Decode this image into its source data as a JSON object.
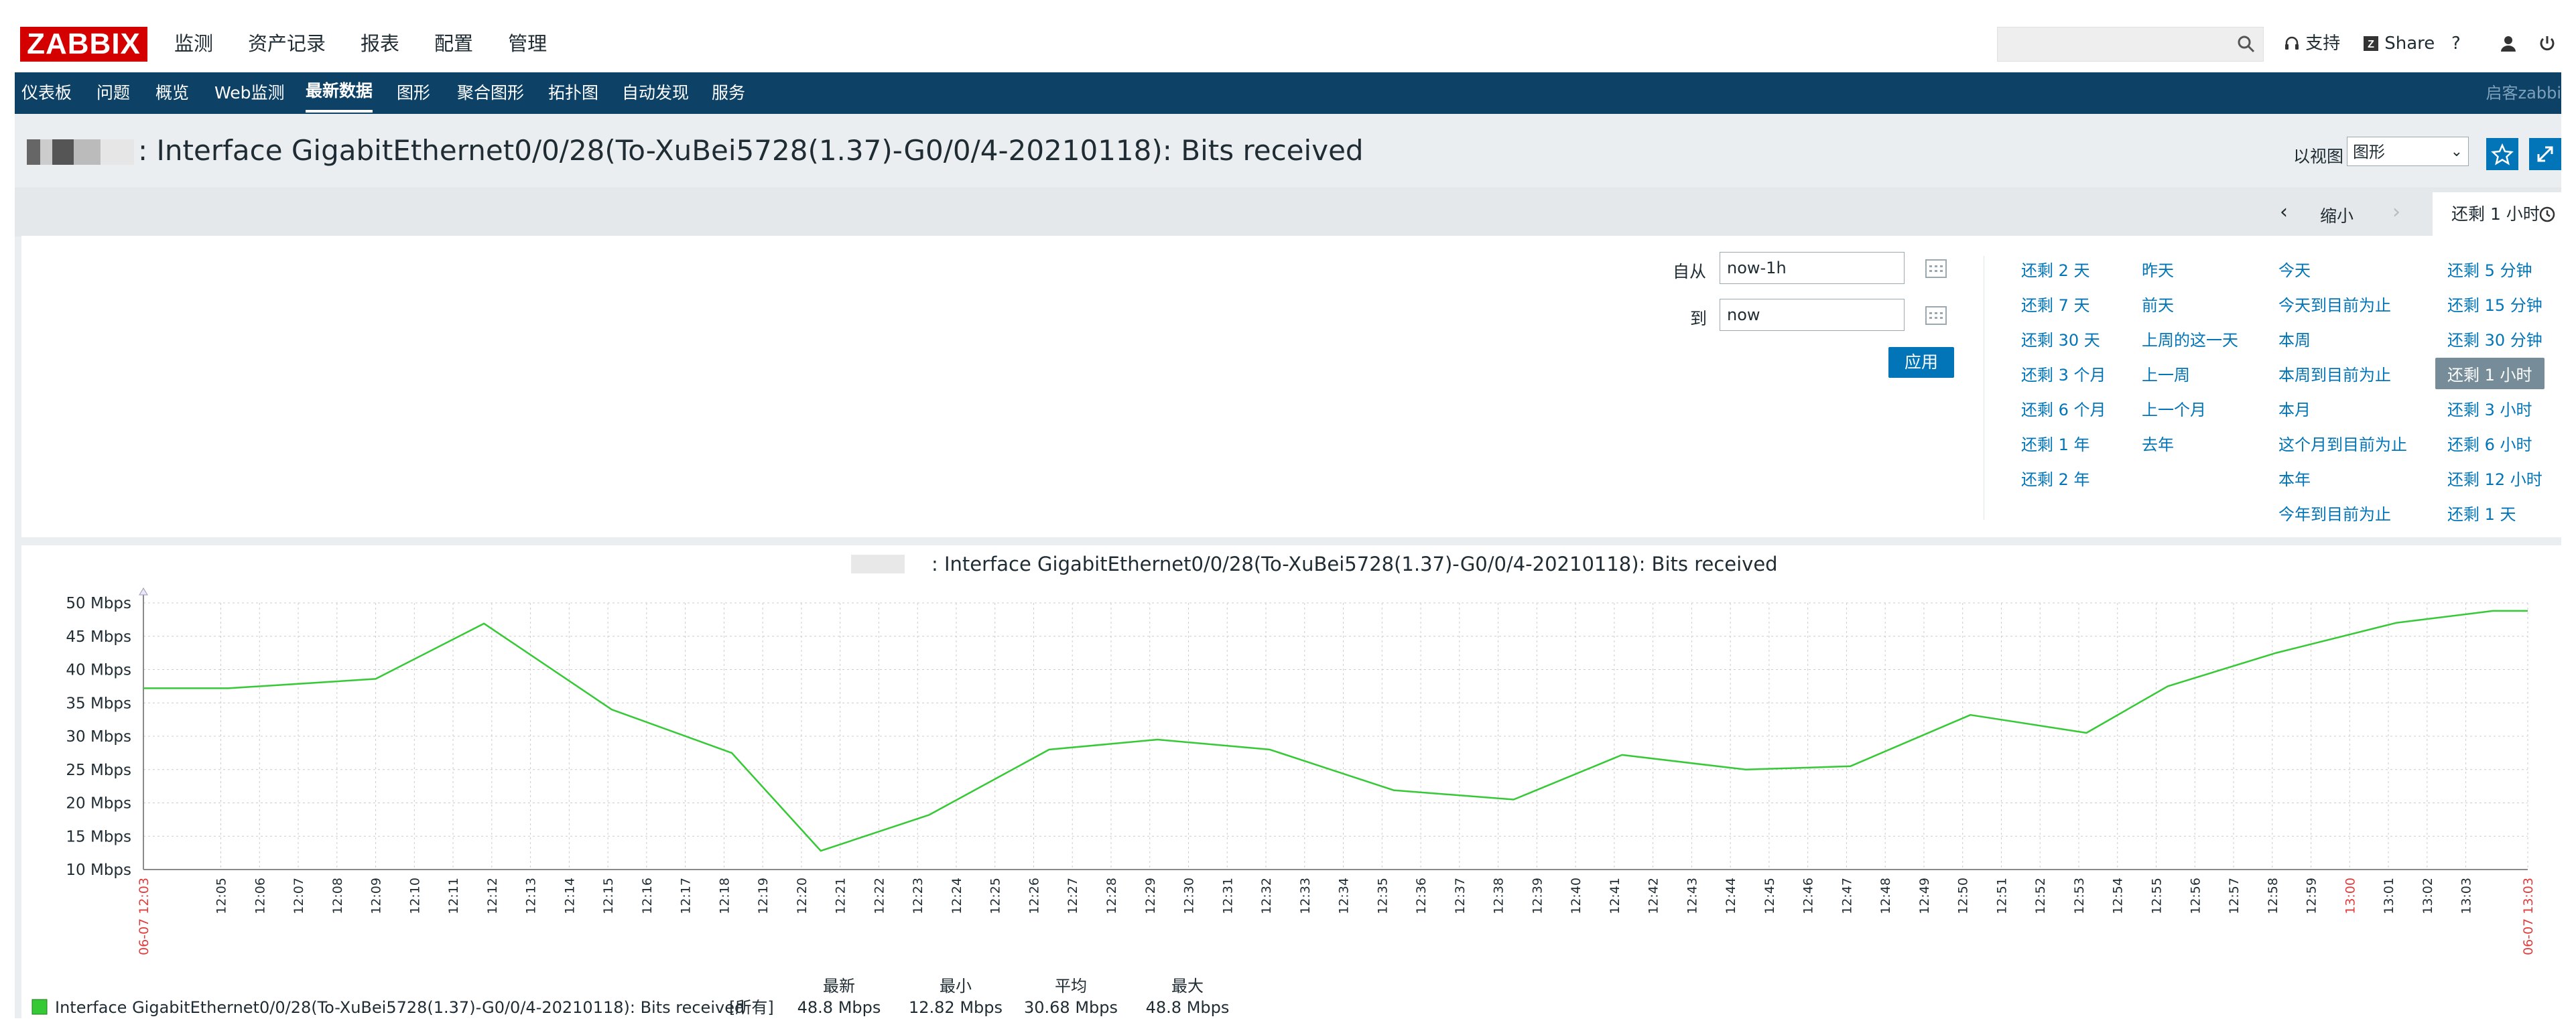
{
  "logo": "ZABBIX",
  "main_menu": [
    "监测",
    "资产记录",
    "报表",
    "配置",
    "管理"
  ],
  "top_right": {
    "search_placeholder": "",
    "support": "支持",
    "share": "Share",
    "help": "?"
  },
  "nav": [
    "仪表板",
    "问题",
    "概览",
    "Web监测",
    "最新数据",
    "图形",
    "聚合图形",
    "拓扑图",
    "自动发现",
    "服务"
  ],
  "nav_active": "最新数据",
  "nav_right": "启客zabbi",
  "page": {
    "title": ": Interface GigabitEthernet0/0/28(To-XuBei5728(1.37)-G0/0/4-20210118): Bits received",
    "view_as_label": "以视图",
    "view_as_value": "图形"
  },
  "time_tabs": {
    "zoom_out": "缩小",
    "current": "还剩 1 小时"
  },
  "filter": {
    "from_label": "自从",
    "from_value": "now-1h",
    "to_label": "到",
    "to_value": "now",
    "apply": "应用"
  },
  "quick_ranges": [
    [
      "还剩 2 天",
      "还剩 7 天",
      "还剩 30 天",
      "还剩 3 个月",
      "还剩 6 个月",
      "还剩 1 年",
      "还剩 2 年"
    ],
    [
      "昨天",
      "前天",
      "上周的这一天",
      "上一周",
      "上一个月",
      "去年"
    ],
    [
      "今天",
      "今天到目前为止",
      "本周",
      "本周到目前为止",
      "本月",
      "这个月到目前为止",
      "本年",
      "今年到目前为止"
    ],
    [
      "还剩 5 分钟",
      "还剩 15 分钟",
      "还剩 30 分钟",
      "还剩 1 小时",
      "还剩 3 小时",
      "还剩 6 小时",
      "还剩 12 小时",
      "还剩 1 天"
    ]
  ],
  "quick_selected": "还剩 1 小时",
  "colors": {
    "accent": "#0275b8",
    "nav": "#0e4166",
    "series": "#36c936",
    "red_tick": "#e33b3b",
    "logo": "#d40000"
  },
  "chart_data": {
    "type": "line",
    "title": ": Interface GigabitEthernet0/0/28(To-XuBei5728(1.37)-G0/0/4-20210118): Bits received",
    "ylim": [
      10,
      50
    ],
    "y_ticks": [
      "10 Mbps",
      "15 Mbps",
      "20 Mbps",
      "25 Mbps",
      "30 Mbps",
      "35 Mbps",
      "40 Mbps",
      "45 Mbps",
      "50 Mbps"
    ],
    "x_ticks": [
      "06-07 12:03",
      "12:05",
      "12:06",
      "12:07",
      "12:08",
      "12:09",
      "12:10",
      "12:11",
      "12:12",
      "12:13",
      "12:14",
      "12:15",
      "12:16",
      "12:17",
      "12:18",
      "12:19",
      "12:20",
      "12:21",
      "12:22",
      "12:23",
      "12:24",
      "12:25",
      "12:26",
      "12:27",
      "12:28",
      "12:29",
      "12:30",
      "12:31",
      "12:32",
      "12:33",
      "12:34",
      "12:35",
      "12:36",
      "12:37",
      "12:38",
      "12:39",
      "12:40",
      "12:41",
      "12:42",
      "12:43",
      "12:44",
      "12:45",
      "12:46",
      "12:47",
      "12:48",
      "12:49",
      "12:50",
      "12:51",
      "12:52",
      "12:53",
      "12:54",
      "12:55",
      "12:56",
      "12:57",
      "12:58",
      "12:59",
      "13:00",
      "13:01",
      "13:02",
      "13:03",
      "06-07 13:03"
    ],
    "red_ticks": [
      "06-07 12:03",
      "13:00",
      "06-07 13:03"
    ],
    "x_minutes": [
      0,
      2.2,
      6,
      8.8,
      12.1,
      15.2,
      17.5,
      20.3,
      23.4,
      26.2,
      29.1,
      32.3,
      35.4,
      38.2,
      41.4,
      44.1,
      47.2,
      50.2,
      52.3,
      55.1,
      58.2,
      60.7,
      61.6
    ],
    "series": [
      {
        "name": "Interface GigabitEthernet0/0/28(To-XuBei5728(1.37)-G0/0/4-20210118): Bits received",
        "values": [
          37.2,
          37.2,
          38.6,
          46.9,
          34.0,
          27.5,
          12.8,
          18.2,
          28.0,
          29.5,
          28.0,
          21.9,
          20.5,
          27.2,
          25.0,
          25.5,
          33.2,
          30.5,
          37.5,
          42.5,
          47.0,
          48.8,
          48.8
        ]
      }
    ],
    "legend": {
      "label": "Interface GigabitEthernet0/0/28(To-XuBei5728(1.37)-G0/0/4-20210118): Bits received",
      "func": "[所有]",
      "headers": [
        "最新",
        "最小",
        "平均",
        "最大"
      ],
      "values": [
        "48.8 Mbps",
        "12.82 Mbps",
        "30.68 Mbps",
        "48.8 Mbps"
      ]
    },
    "grid": true
  }
}
